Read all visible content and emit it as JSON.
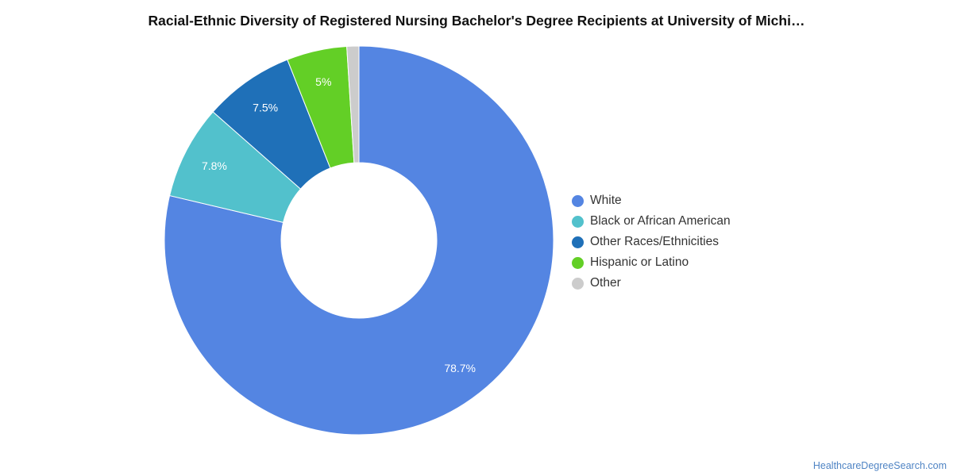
{
  "title": "Racial-Ethnic Diversity of Registered Nursing Bachelor's Degree Recipients at University of Michi…",
  "source": "HealthcareDegreeSearch.com",
  "chart_data": {
    "type": "pie",
    "donut": true,
    "legend_position": "right",
    "categories": [
      "White",
      "Black or African American",
      "Other Races/Ethnicities",
      "Hispanic or Latino",
      "Other"
    ],
    "values": [
      78.7,
      7.8,
      7.5,
      5.0,
      1.0
    ],
    "labels": [
      "78.7%",
      "7.8%",
      "7.5%",
      "5%",
      ""
    ],
    "colors": [
      "#5485e2",
      "#52c1cc",
      "#1f70b8",
      "#63cf26",
      "#cccccc"
    ]
  },
  "legend": [
    {
      "label": "White",
      "color": "#5485e2"
    },
    {
      "label": "Black or African American",
      "color": "#52c1cc"
    },
    {
      "label": "Other Races/Ethnicities",
      "color": "#1f70b8"
    },
    {
      "label": "Hispanic or Latino",
      "color": "#63cf26"
    },
    {
      "label": "Other",
      "color": "#cccccc"
    }
  ]
}
